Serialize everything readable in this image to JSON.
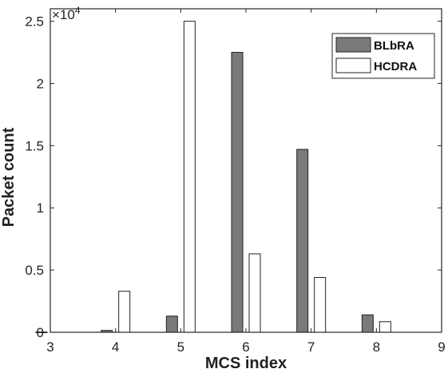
{
  "chart_data": {
    "type": "bar",
    "xlabel": "MCS index",
    "ylabel": "Packet count",
    "y_exponent_label": "×10",
    "y_exponent_power": "4",
    "x_ticks": [
      "3",
      "4",
      "5",
      "6",
      "7",
      "8",
      "9"
    ],
    "y_ticks": [
      "0",
      "0.5",
      "1",
      "1.5",
      "2",
      "2.5"
    ],
    "xlim": [
      3,
      9
    ],
    "ylim": [
      0,
      26000
    ],
    "categories": [
      3,
      4,
      5,
      6,
      7,
      8
    ],
    "series": [
      {
        "name": "BLbRA",
        "color": "#7a7a7a",
        "values": [
          20,
          150,
          1300,
          22500,
          14700,
          1400
        ]
      },
      {
        "name": "HCDRA",
        "color": "#ffffff",
        "values": [
          0,
          3300,
          25000,
          6300,
          4400,
          850
        ]
      }
    ],
    "legend_position": "top-right",
    "grid": false
  }
}
